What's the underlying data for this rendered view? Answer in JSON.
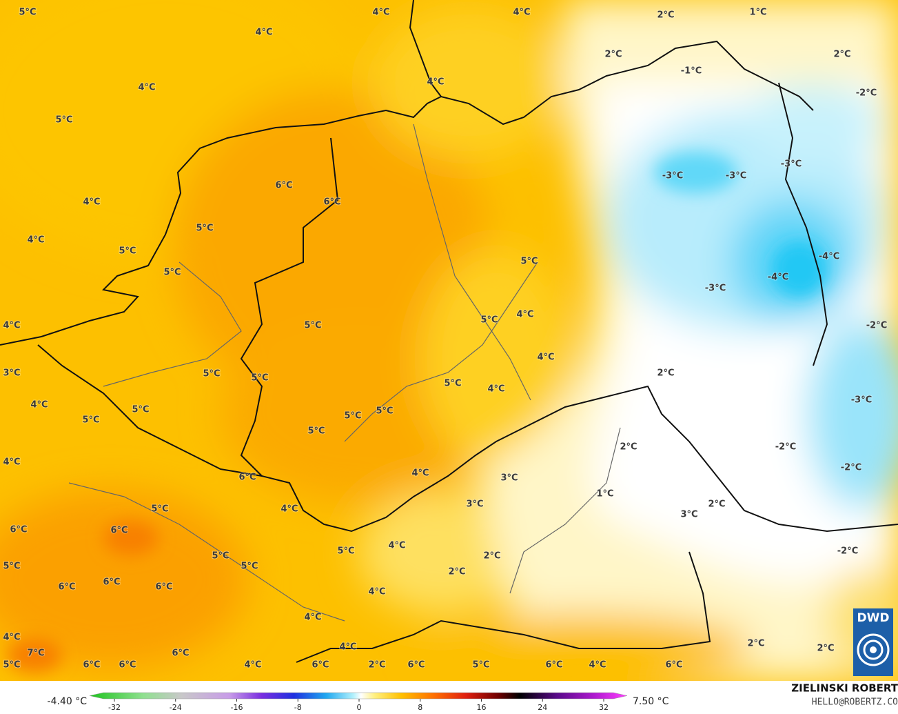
{
  "map": {
    "labels": [
      "5°C",
      "4°C",
      "4°C",
      "2°C",
      "1°C",
      "4°C",
      "2°C",
      "2°C",
      "4°C",
      "4°C",
      "-1°C",
      "-2°C",
      "5°C",
      "-3°C",
      "-3°C",
      "-3°C",
      "6°C",
      "6°C",
      "4°C",
      "5°C",
      "4°C",
      "5°C",
      "5°C",
      "-4°C",
      "-4°C",
      "-3°C",
      "5°C",
      "4°C",
      "5°C",
      "5°C",
      "4°C",
      "-2°C",
      "4°C",
      "3°C",
      "5°C",
      "5°C",
      "5°C",
      "4°C",
      "2°C",
      "4°C",
      "-3°C",
      "5°C",
      "5°C",
      "5°C",
      "5°C",
      "5°C",
      "2°C",
      "-2°C",
      "4°C",
      "-2°C",
      "6°C",
      "4°C",
      "3°C",
      "3°C",
      "1°C",
      "5°C",
      "4°C",
      "2°C",
      "3°C",
      "6°C",
      "6°C",
      "4°C",
      "5°C",
      "5°C",
      "2°C",
      "-2°C",
      "5°C",
      "5°C",
      "2°C",
      "6°C",
      "6°C",
      "6°C",
      "4°C",
      "4°C",
      "4°C",
      "4°C",
      "2°C",
      "2°C",
      "7°C",
      "6°C",
      "5°C",
      "6°C",
      "6°C",
      "4°C",
      "6°C",
      "2°C",
      "6°C",
      "5°C",
      "6°C",
      "4°C",
      "6°C"
    ]
  },
  "legend": {
    "min_label": "-4.40 °C",
    "max_label": "7.50 °C",
    "ticks": [
      -32,
      -24,
      -16,
      -8,
      0,
      8,
      16,
      24,
      32
    ]
  },
  "credit": {
    "name": "ZIELINSKI ROBERT",
    "contact": "HELLO@ROBERTZ.CO"
  },
  "logo": {
    "text": "DWD"
  }
}
